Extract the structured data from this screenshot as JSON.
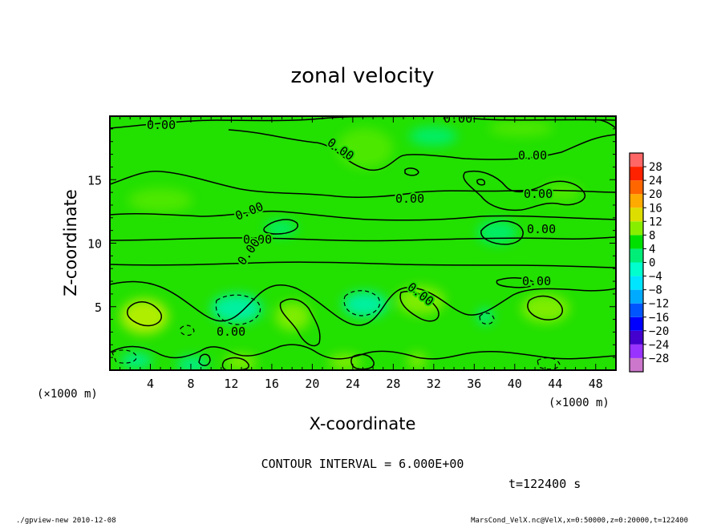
{
  "chart_data": {
    "type": "heatmap",
    "title": "zonal velocity",
    "xlabel": "X-coordinate",
    "ylabel": "Z-coordinate",
    "x_unit": "(×1000 m)",
    "y_unit": "(×1000 m)",
    "xlim": [
      0,
      50
    ],
    "ylim": [
      0,
      20
    ],
    "x_ticks": [
      "4",
      "8",
      "12",
      "16",
      "20",
      "24",
      "28",
      "32",
      "36",
      "40",
      "44",
      "48"
    ],
    "y_ticks": [
      "5",
      "10",
      "15"
    ],
    "colorbar_ticks": [
      "28",
      "24",
      "20",
      "16",
      "12",
      "8",
      "4",
      "0",
      "−4",
      "−8",
      "−12",
      "−16",
      "−20",
      "−24",
      "−28"
    ],
    "colorbar_range": [
      -32,
      32
    ],
    "colorbar_colors": [
      "#cc77cc",
      "#9933ff",
      "#4400cc",
      "#0000ff",
      "#0055ff",
      "#00aaff",
      "#00e5ff",
      "#00ffcc",
      "#00ee77",
      "#00e000",
      "#88ee00",
      "#dddd00",
      "#ffaa00",
      "#ff6600",
      "#ff2200",
      "#ff6666"
    ],
    "contour_interval": "CONTOUR INTERVAL = 6.000E+00",
    "contour_labels": [
      "0.00",
      "0.00",
      "0.00",
      "0.00",
      "0.00",
      "0.00",
      "0.00",
      "0.00",
      "0.00",
      "0.00",
      "0.00",
      "0.00",
      "0.00",
      "0.00"
    ],
    "time": "t=122400 s",
    "field_min": -9,
    "field_max": 9,
    "background_value": 0
  },
  "footer": {
    "left": "./gpview-new  2010-12-08",
    "right": "MarsCond_VelX.nc@VelX,x=0:50000,z=0:20000,t=122400"
  }
}
